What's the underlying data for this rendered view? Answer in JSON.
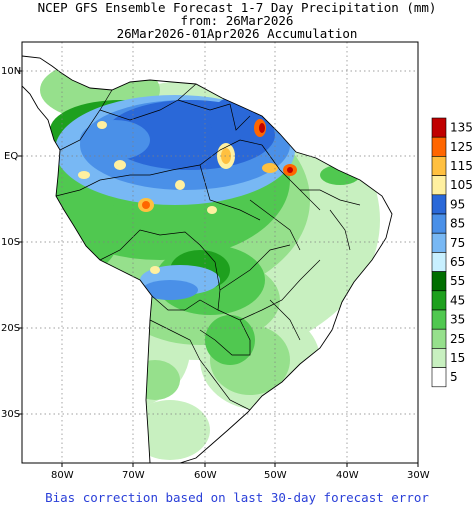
{
  "title": {
    "line1": "NCEP GFS Ensemble Forecast 1-7 Day Precipitation (mm)",
    "line2": "from: 26Mar2026",
    "line3": "26Mar2026-01Apr2026 Accumulation"
  },
  "latitude_labels": [
    "10N",
    "EQ",
    "10S",
    "20S",
    "30S"
  ],
  "longitude_labels": [
    "80W",
    "70W",
    "60W",
    "50W",
    "40W",
    "30W"
  ],
  "legend": {
    "levels": [
      "135",
      "125",
      "115",
      "105",
      "95",
      "85",
      "75",
      "65",
      "55",
      "45",
      "35",
      "25",
      "15",
      "5"
    ],
    "colors": [
      "#c00000",
      "#ff6600",
      "#ffc040",
      "#fff0a0",
      "#2a68d8",
      "#4a90e8",
      "#78b8f4",
      "#c8f0ff",
      "#006e00",
      "#1ea01e",
      "#50c850",
      "#96e08c",
      "#c8f0c0",
      "#ffffff"
    ]
  },
  "footer": "Bias correction based on last 30-day forecast error"
}
